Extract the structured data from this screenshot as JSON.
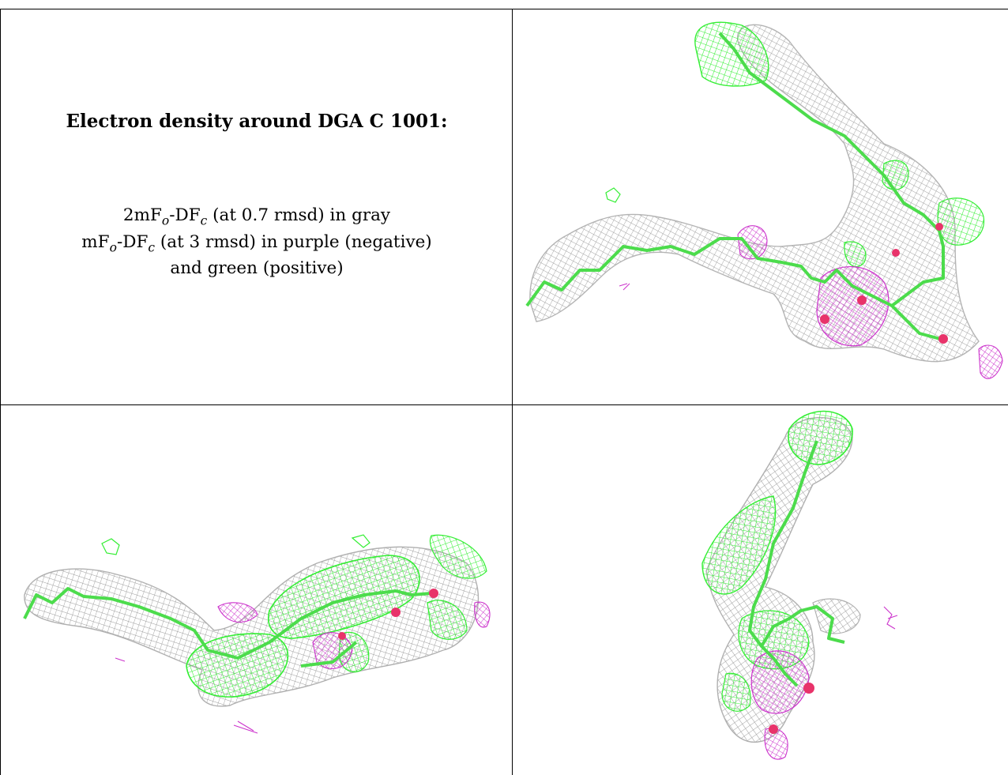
{
  "title": "Electron density around DGA C 1001:",
  "legend": {
    "line1_prefix": "2mF",
    "line1_sub1": "o",
    "line1_mid": "-DF",
    "line1_sub2": "c",
    "line1_suffix": " (at 0.7 rmsd) in gray",
    "line2_prefix": "mF",
    "line2_sub1": "o",
    "line2_mid": "-DF",
    "line2_sub2": "c",
    "line2_suffix": " (at 3 rmsd) in purple (negative)",
    "line3": "and green (positive)"
  },
  "colors": {
    "density_2fofc": "#9a9a9a",
    "positive_difference": "#33ee33",
    "negative_difference": "#cc33cc",
    "oxygen_atom": "#e8336a",
    "carbon_stick": "#4cdc4c",
    "table_border": "#000000"
  },
  "panels": [
    {
      "id": "view-1",
      "content": "density-mesh-render"
    },
    {
      "id": "view-2",
      "content": "density-mesh-render"
    },
    {
      "id": "view-3",
      "content": "density-mesh-render"
    }
  ]
}
